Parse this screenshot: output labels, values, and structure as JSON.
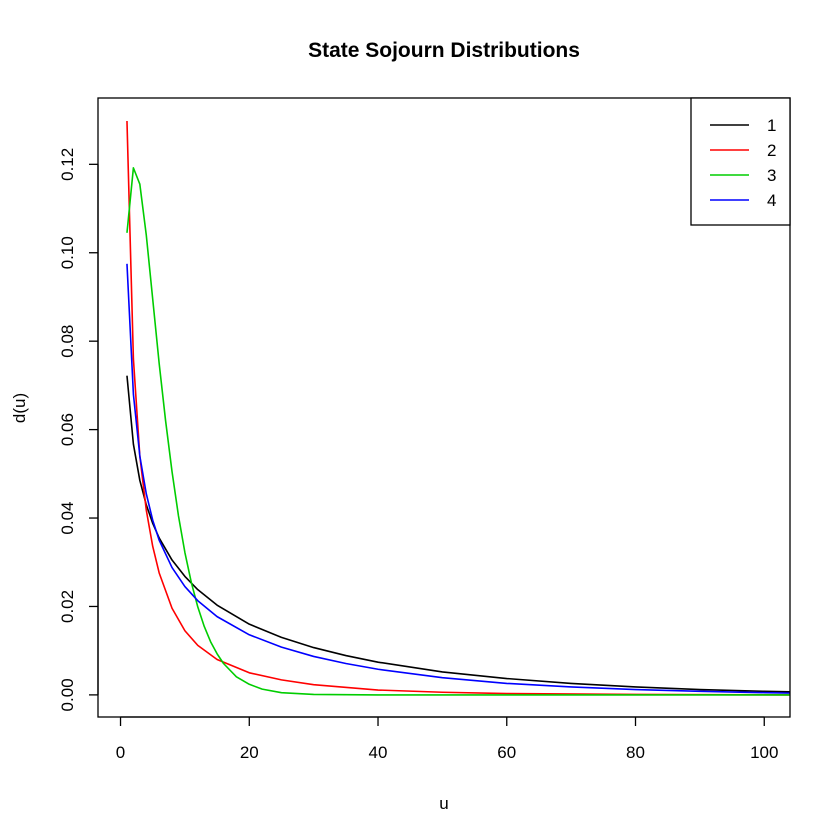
{
  "chart_data": {
    "type": "line",
    "title": "State Sojourn Distributions",
    "xlabel": "u",
    "ylabel": "d(u)",
    "xlim": [
      -3.5,
      104
    ],
    "ylim": [
      -0.005,
      0.135
    ],
    "xticks": [
      0,
      20,
      40,
      60,
      80,
      100
    ],
    "xtick_labels": [
      "0",
      "20",
      "40",
      "60",
      "80",
      "100"
    ],
    "yticks": [
      0.0,
      0.02,
      0.04,
      0.06,
      0.08,
      0.1,
      0.12
    ],
    "ytick_labels": [
      "0.00",
      "0.02",
      "0.04",
      "0.06",
      "0.08",
      "0.10",
      "0.12"
    ],
    "grid": false,
    "legend_position": "top-right",
    "series": [
      {
        "name": "1",
        "color": "#000000",
        "points": [
          [
            1,
            0.0722
          ],
          [
            2,
            0.0567
          ],
          [
            3,
            0.0485
          ],
          [
            4,
            0.043
          ],
          [
            5,
            0.0388
          ],
          [
            6,
            0.0355
          ],
          [
            8,
            0.0305
          ],
          [
            10,
            0.0268
          ],
          [
            12,
            0.0238
          ],
          [
            15,
            0.0203
          ],
          [
            20,
            0.016
          ],
          [
            25,
            0.013
          ],
          [
            30,
            0.0107
          ],
          [
            35,
            0.0089
          ],
          [
            40,
            0.0074
          ],
          [
            50,
            0.0052
          ],
          [
            60,
            0.0037
          ],
          [
            70,
            0.0026
          ],
          [
            80,
            0.0018
          ],
          [
            90,
            0.0012
          ],
          [
            100,
            0.0008
          ],
          [
            104,
            0.0007
          ]
        ]
      },
      {
        "name": "2",
        "color": "#ff0000",
        "points": [
          [
            1,
            0.1298
          ],
          [
            2,
            0.076
          ],
          [
            3,
            0.054
          ],
          [
            4,
            0.0418
          ],
          [
            5,
            0.0336
          ],
          [
            6,
            0.0276
          ],
          [
            8,
            0.0196
          ],
          [
            10,
            0.0145
          ],
          [
            12,
            0.0112
          ],
          [
            15,
            0.008
          ],
          [
            20,
            0.005
          ],
          [
            25,
            0.0034
          ],
          [
            30,
            0.0023
          ],
          [
            40,
            0.0011
          ],
          [
            50,
            0.0006
          ],
          [
            60,
            0.0003
          ],
          [
            80,
            0.0001
          ],
          [
            104,
            0.0
          ]
        ]
      },
      {
        "name": "3",
        "color": "#00cd00",
        "points": [
          [
            1,
            0.1045
          ],
          [
            2,
            0.1192
          ],
          [
            3,
            0.1155
          ],
          [
            4,
            0.104
          ],
          [
            5,
            0.0895
          ],
          [
            6,
            0.075
          ],
          [
            7,
            0.062
          ],
          [
            8,
            0.0505
          ],
          [
            9,
            0.0405
          ],
          [
            10,
            0.0322
          ],
          [
            11,
            0.0254
          ],
          [
            12,
            0.0199
          ],
          [
            13,
            0.0155
          ],
          [
            14,
            0.012
          ],
          [
            15,
            0.0093
          ],
          [
            16,
            0.0071
          ],
          [
            18,
            0.0041
          ],
          [
            20,
            0.0024
          ],
          [
            22,
            0.0013
          ],
          [
            25,
            0.0005
          ],
          [
            30,
            0.0001
          ],
          [
            40,
            0.0
          ],
          [
            104,
            0.0
          ]
        ]
      },
      {
        "name": "4",
        "color": "#0000ff",
        "points": [
          [
            1,
            0.0975
          ],
          [
            2,
            0.068
          ],
          [
            3,
            0.054
          ],
          [
            4,
            0.0455
          ],
          [
            5,
            0.0395
          ],
          [
            6,
            0.035
          ],
          [
            8,
            0.0288
          ],
          [
            10,
            0.0245
          ],
          [
            12,
            0.0213
          ],
          [
            15,
            0.0177
          ],
          [
            20,
            0.0136
          ],
          [
            25,
            0.0108
          ],
          [
            30,
            0.0087
          ],
          [
            35,
            0.0071
          ],
          [
            40,
            0.0058
          ],
          [
            50,
            0.0039
          ],
          [
            60,
            0.0026
          ],
          [
            70,
            0.0018
          ],
          [
            80,
            0.0012
          ],
          [
            90,
            0.0008
          ],
          [
            100,
            0.0005
          ],
          [
            104,
            0.0004
          ]
        ]
      }
    ]
  }
}
